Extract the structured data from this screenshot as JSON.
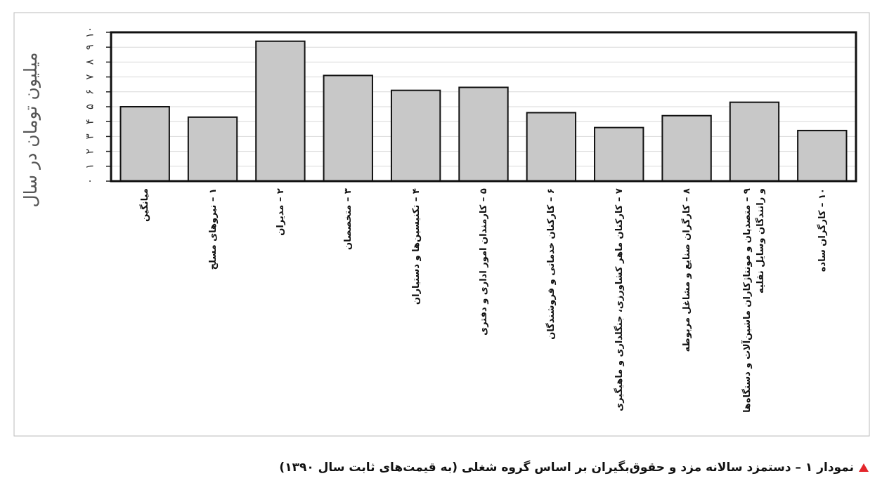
{
  "chart_data": {
    "type": "bar",
    "title": "نمودار ۱ – دستمزد سالانه مزد و حقوق‌بگیران بر اساس گروه شغلی (به قیمت‌های ثابت سال ۱۳۹۰)",
    "y_label": "میلیون تومان در سال",
    "categories": [
      "میانگین",
      "۱ – نیروهای مسلح",
      "۲ – مدیران",
      "۳ – متخصصان",
      "۴ – تکنیسین‌ها و دستیاران",
      "۵ – کارمندان امور اداری و دفتری",
      "۶ – کارکنان خدماتی و فروشندگان",
      "۷ – کارکنان ماهر کشاورزی، جنگلداری و ماهیگیری",
      "۸ – کارگران صنایع و مشاغل مربوطه",
      "۹ – متصدیان و مونتاژکاران ماشین‌آلات و دستگاه‌ها و رانندگان وسایل نقلیه",
      "۱۰ – کارگران ساده"
    ],
    "values": [
      5.0,
      4.3,
      9.4,
      7.1,
      6.1,
      6.3,
      4.6,
      3.6,
      4.4,
      5.3,
      3.4
    ],
    "color": "#c8c8c8",
    "ylim": [
      0,
      10
    ],
    "yticks": [
      {
        "value": 0,
        "label": "۰"
      },
      {
        "value": 1,
        "label": "۱"
      },
      {
        "value": 2,
        "label": "۲"
      },
      {
        "value": 3,
        "label": "۳"
      },
      {
        "value": 4,
        "label": "۴"
      },
      {
        "value": 5,
        "label": "۵"
      },
      {
        "value": 6,
        "label": "۶"
      },
      {
        "value": 7,
        "label": "۷"
      },
      {
        "value": 8,
        "label": "۸"
      },
      {
        "value": 9,
        "label": "۹"
      },
      {
        "value": 10,
        "label": "۱۰"
      }
    ],
    "grid": true
  }
}
